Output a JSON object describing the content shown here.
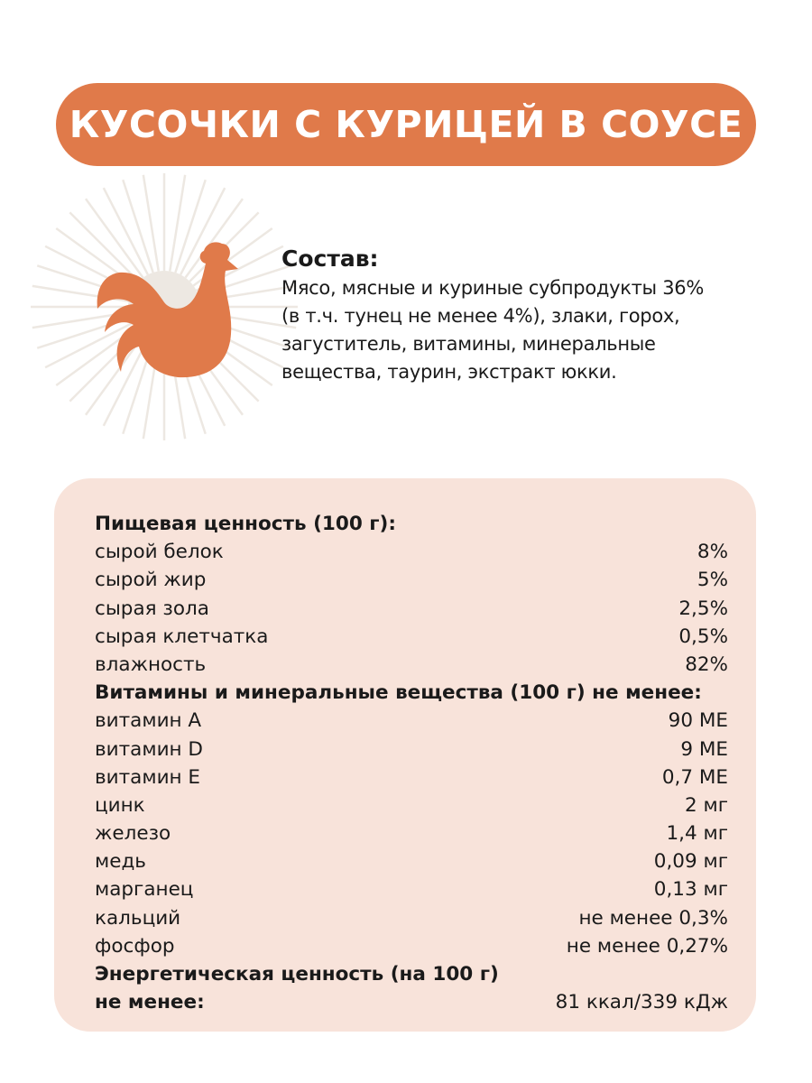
{
  "title": "КУСОЧКИ С КУРИЦЕЙ В СОУСЕ",
  "colors": {
    "accent": "#E07A4A",
    "panel": "#F8E3DA",
    "rays": "#EDE8E2"
  },
  "icon": "rooster-icon",
  "composition": {
    "heading": "Состав:",
    "lines": [
      "Мясо, мясные и куриные субпродукты  36%",
      "(в т.ч.  тунец не менее 4%), злаки, горох,",
      "загуститель, витамины, минеральные",
      "вещества, таурин, экстракт юкки."
    ]
  },
  "nutrition": {
    "rows": [
      {
        "label": "Пищевая ценность (100 г):",
        "value": "",
        "heading": true
      },
      {
        "label": "сырой белок",
        "value": "8%"
      },
      {
        "label": "сырой жир",
        "value": "5%"
      },
      {
        "label": "сырая зола",
        "value": "2,5%"
      },
      {
        "label": "сырая клетчатка",
        "value": "0,5%"
      },
      {
        "label": "влажность",
        "value": "82%"
      },
      {
        "label": "Витамины и минеральные вещества (100 г) не менее:",
        "value": "",
        "heading": true
      },
      {
        "label": "витамин А",
        "value": "90 МЕ"
      },
      {
        "label": "витамин D",
        "value": "9 МЕ"
      },
      {
        "label": "витамин Е",
        "value": "0,7 МЕ"
      },
      {
        "label": "цинк",
        "value": "2 мг"
      },
      {
        "label": "железо",
        "value": "1,4 мг"
      },
      {
        "label": "медь",
        "value": "0,09 мг"
      },
      {
        "label": "марганец",
        "value": "0,13 мг"
      },
      {
        "label": "кальций",
        "value": "не менее 0,3%"
      },
      {
        "label": "фосфор",
        "value": "не менее 0,27%"
      },
      {
        "label": "Энергетическая ценность (на 100 г)",
        "value": "",
        "heading": true
      },
      {
        "label": "не менее:",
        "value": "81 ккал/339 кДж",
        "heading": true
      }
    ]
  }
}
